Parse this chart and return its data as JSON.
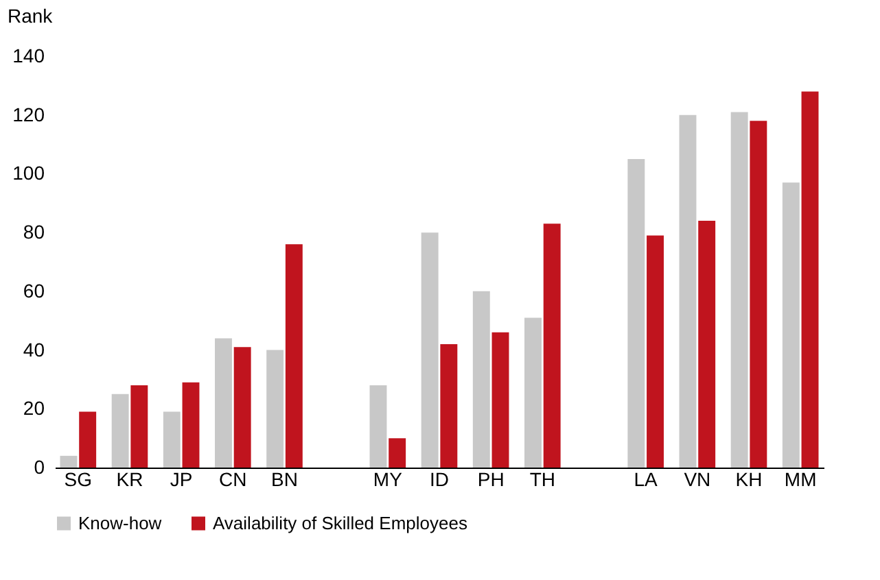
{
  "chart_data": {
    "type": "bar",
    "ylabel": "Rank",
    "categories": [
      "SG",
      "KR",
      "JP",
      "CN",
      "BN",
      null,
      "MY",
      "ID",
      "PH",
      "TH",
      null,
      "LA",
      "VN",
      "KH",
      "MM"
    ],
    "series": [
      {
        "name": "Know-how",
        "color": "#c8c8c8",
        "values": [
          4,
          25,
          19,
          44,
          40,
          null,
          28,
          80,
          60,
          51,
          null,
          105,
          120,
          121,
          97
        ]
      },
      {
        "name": "Availability of Skilled Employees",
        "color": "#c0141e",
        "values": [
          19,
          28,
          29,
          41,
          76,
          null,
          10,
          42,
          46,
          83,
          null,
          79,
          84,
          118,
          128
        ]
      }
    ],
    "ylim": [
      0,
      140
    ],
    "yticks": [
      0,
      20,
      40,
      60,
      80,
      100,
      120,
      140
    ],
    "grid": false,
    "legend": "bottom"
  }
}
